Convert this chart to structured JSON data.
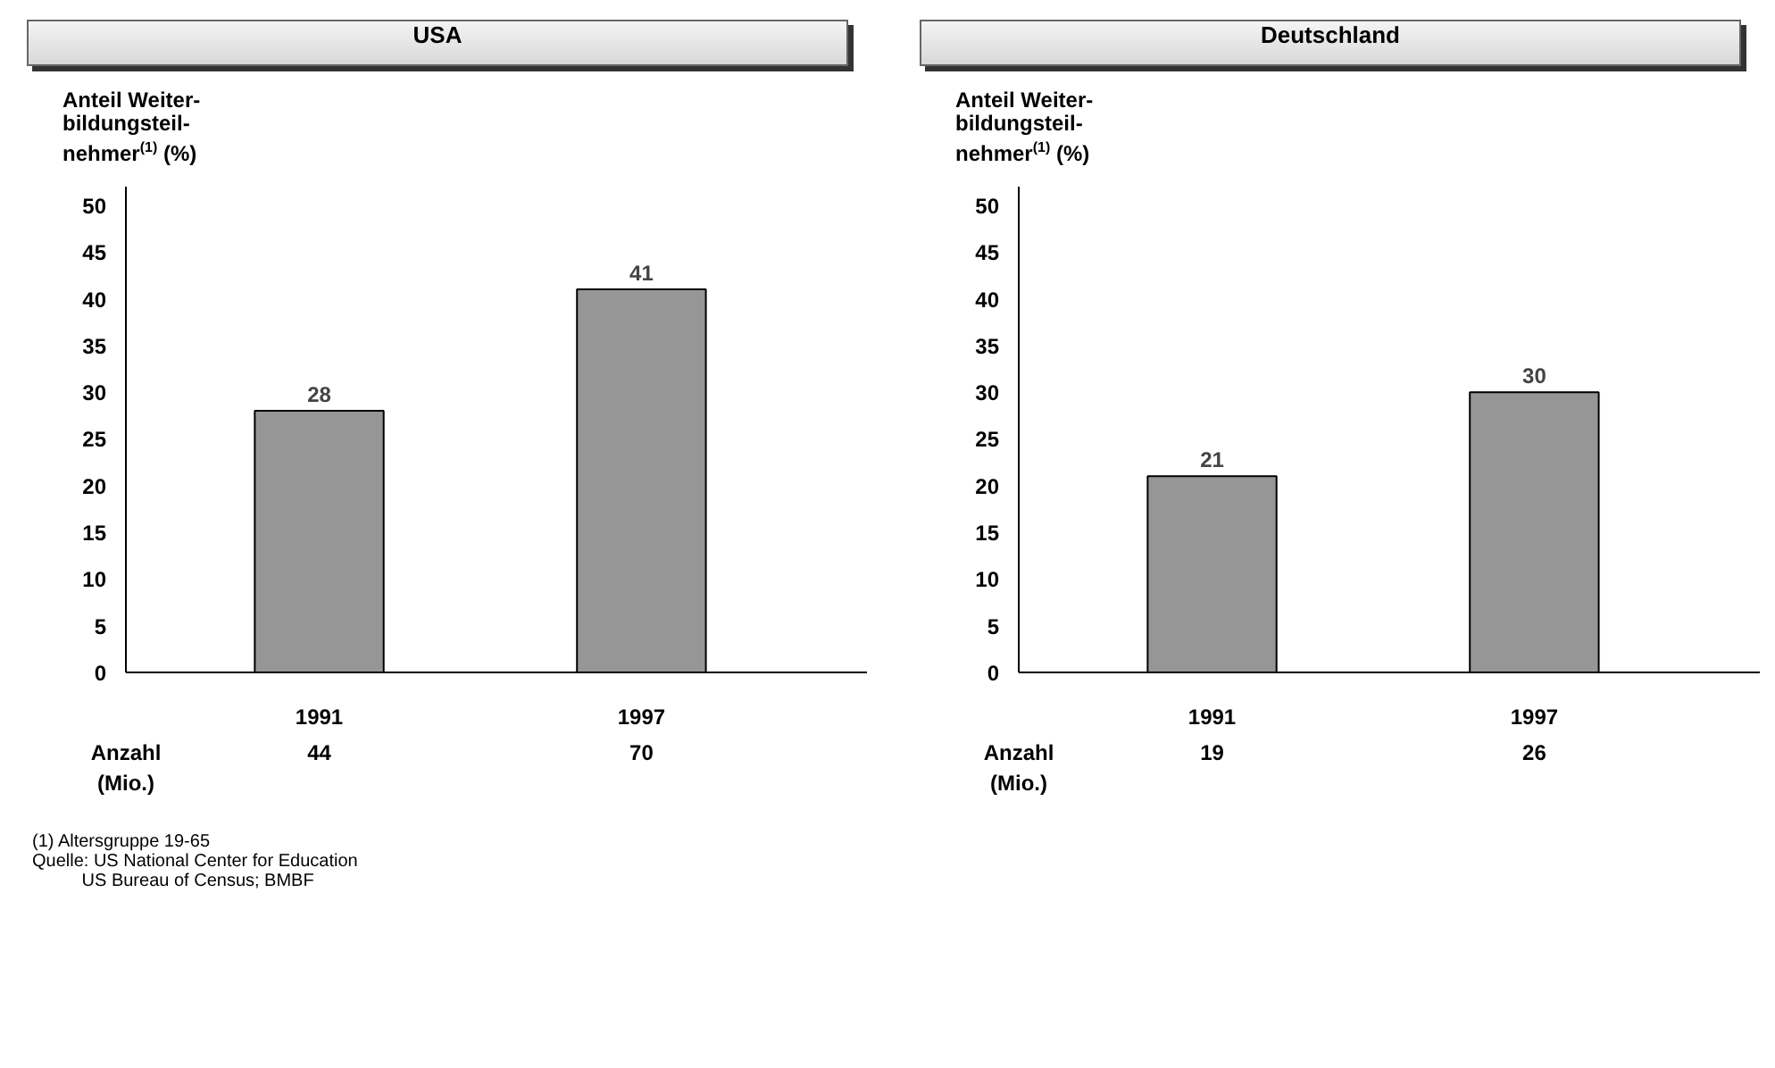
{
  "chart_data": [
    {
      "type": "bar",
      "title": "USA",
      "ylabel": "Anteil Weiter-\nbildungsteil-\nnehmer$^{(1)}$ (%)",
      "categories": [
        "1991",
        "1997"
      ],
      "values": [
        28,
        41
      ],
      "color": "#969696",
      "ylim": [
        0,
        52
      ],
      "yticks": [
        0,
        5,
        10,
        15,
        20,
        25,
        30,
        35,
        40,
        45,
        50
      ],
      "data_labels": true,
      "grid": false,
      "annotations": [
        "Anzahl\n(Mio.)",
        "44",
        "70",
        "(1) Altersgruppe 19-65",
        "Quelle: US National Center for Education",
        "US Bureau of Census; BMBF"
      ]
    },
    {
      "type": "bar",
      "title": "Deutschland",
      "ylabel": "Anteil Weiter-\nbildungsteil-\nnehmer$^{(1)}$ (%)",
      "categories": [
        "1991",
        "1997"
      ],
      "values": [
        21,
        30
      ],
      "color": "#969696",
      "ylim": [
        0,
        52
      ],
      "yticks": [
        0,
        5,
        10,
        15,
        20,
        25,
        30,
        35,
        40,
        45,
        50
      ],
      "data_labels": true,
      "grid": false,
      "annotations": [
        "Anzahl\n(Mio.)",
        "19",
        "26"
      ]
    }
  ]
}
